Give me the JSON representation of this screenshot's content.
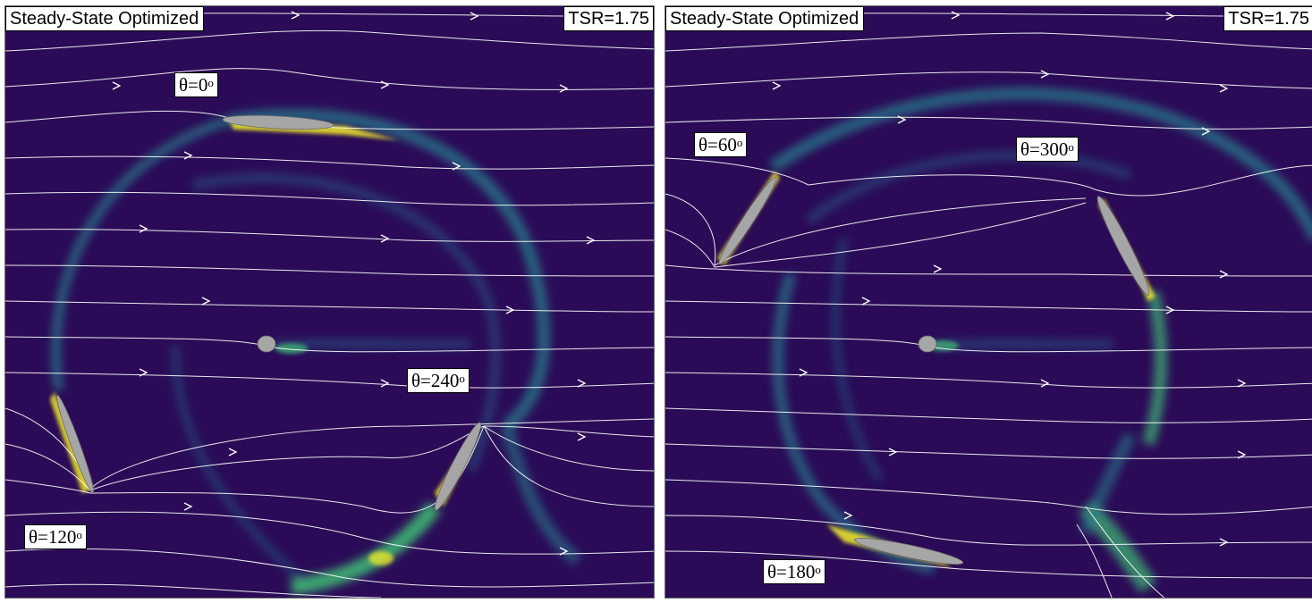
{
  "panels": [
    {
      "title": "Steady-State Optimized",
      "tsr_label": "TSR=1.75",
      "blades": [
        {
          "theta_label": "θ=0",
          "degree_symbol": "o"
        },
        {
          "theta_label": "θ=120",
          "degree_symbol": "o"
        },
        {
          "theta_label": "θ=240",
          "degree_symbol": "o"
        }
      ]
    },
    {
      "title": "Steady-State Optimized",
      "tsr_label": "TSR=1.75",
      "blades": [
        {
          "theta_label": "θ=60",
          "degree_symbol": "o"
        },
        {
          "theta_label": "θ=300",
          "degree_symbol": "o"
        },
        {
          "theta_label": "θ=180",
          "degree_symbol": "o"
        }
      ]
    }
  ],
  "colors": {
    "background_field": "#2b0b57",
    "vortex_teal": "#2a7f8e",
    "vortex_green": "#3fbf75",
    "high_vorticity": "#f2ea2a",
    "blade_fill": "#a6a6a6",
    "streamline": "#ffffff"
  }
}
